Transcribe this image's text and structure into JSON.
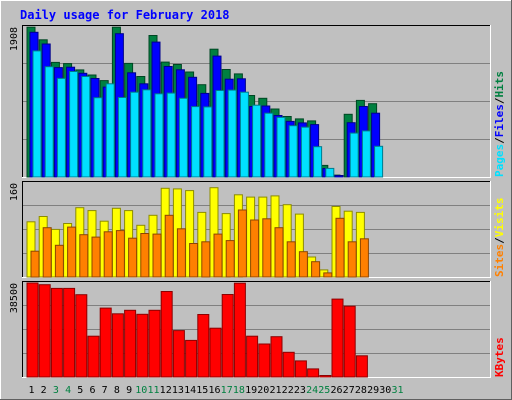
{
  "chart_data": [
    {
      "panel": "hits-files-pages",
      "type": "bar",
      "title": "Daily usage for February 2018",
      "categories": [
        "1",
        "2",
        "3",
        "4",
        "5",
        "6",
        "7",
        "8",
        "9",
        "10",
        "11",
        "12",
        "13",
        "14",
        "15",
        "16",
        "17",
        "18",
        "19",
        "20",
        "21",
        "22",
        "23",
        "24",
        "25",
        "26",
        "27",
        "28",
        "29",
        "30",
        "31"
      ],
      "y_tick": "1908",
      "ymax": 1908,
      "legend": [
        "Pages",
        "Files",
        "Hits"
      ],
      "series": [
        {
          "name": "Hits",
          "color": "#008040",
          "values": [
            1906,
            1745,
            1458,
            1443,
            1362,
            1297,
            1226,
            1906,
            1445,
            1278,
            1800,
            1462,
            1431,
            1335,
            1174,
            1625,
            1367,
            1312,
            1037,
            1001,
            865,
            770,
            739,
            714,
            148,
            24,
            798,
            974,
            933,
            0,
            0
          ]
        },
        {
          "name": "Files",
          "color": "#0000ff",
          "values": [
            1840,
            1692,
            1391,
            1397,
            1319,
            1253,
            1144,
            1823,
            1325,
            1186,
            1716,
            1405,
            1364,
            1268,
            1063,
            1538,
            1244,
            1249,
            897,
            903,
            782,
            707,
            688,
            667,
            107,
            5,
            691,
            897,
            811,
            0,
            0
          ]
        },
        {
          "name": "Pages",
          "color": "#00e0ff",
          "values": [
            1604,
            1403,
            1254,
            1342,
            1278,
            1009,
            1185,
            1011,
            1079,
            1109,
            1058,
            1067,
            1001,
            895,
            892,
            1100,
            1105,
            1079,
            913,
            812,
            758,
            652,
            634,
            385,
            109,
            0,
            559,
            586,
            390,
            0,
            0
          ]
        }
      ]
    },
    {
      "panel": "visits-sites",
      "type": "bar",
      "categories": [
        "1",
        "2",
        "3",
        "4",
        "5",
        "6",
        "7",
        "8",
        "9",
        "10",
        "11",
        "12",
        "13",
        "14",
        "15",
        "16",
        "17",
        "18",
        "19",
        "20",
        "21",
        "22",
        "23",
        "24",
        "25",
        "26",
        "27",
        "28",
        "29",
        "30",
        "31"
      ],
      "y_tick": "160",
      "ymax": 160,
      "legend": [
        "Sites",
        "Visits"
      ],
      "series": [
        {
          "name": "Visits",
          "color": "#ffff00",
          "values": [
            94,
            103,
            81,
            91,
            118,
            113,
            95,
            117,
            113,
            88,
            105,
            151,
            150,
            147,
            110,
            152,
            108,
            140,
            136,
            136,
            138,
            123,
            107,
            34,
            12,
            120,
            112,
            110,
            0,
            0,
            0
          ]
        },
        {
          "name": "Sites",
          "color": "#ff8000",
          "values": [
            44,
            84,
            54,
            85,
            72,
            68,
            77,
            79,
            66,
            74,
            73,
            105,
            82,
            57,
            60,
            73,
            62,
            114,
            97,
            99,
            84,
            60,
            43,
            26,
            7,
            100,
            60,
            65,
            0,
            0,
            0
          ]
        }
      ]
    },
    {
      "panel": "kbytes",
      "type": "bar",
      "categories": [
        "1",
        "2",
        "3",
        "4",
        "5",
        "6",
        "7",
        "8",
        "9",
        "10",
        "11",
        "12",
        "13",
        "14",
        "15",
        "16",
        "17",
        "18",
        "19",
        "20",
        "21",
        "22",
        "23",
        "24",
        "25",
        "26",
        "27",
        "28",
        "29",
        "30",
        "31"
      ],
      "y_tick": "38500",
      "ymax": 38500,
      "legend": [
        "KBytes"
      ],
      "series": [
        {
          "name": "KBytes",
          "color": "#ff0000",
          "values": [
            38500,
            37800,
            36300,
            36300,
            33700,
            16700,
            28200,
            25900,
            27300,
            25700,
            27300,
            35000,
            19000,
            15000,
            25600,
            20000,
            33800,
            38400,
            16700,
            13500,
            16500,
            10100,
            6600,
            3300,
            250,
            31900,
            29000,
            8700,
            0,
            0,
            0
          ]
        }
      ]
    }
  ],
  "axis": {
    "day_label_colors": {
      "weekday": "#000000",
      "weekend": "#008040"
    },
    "weekend_days": [
      "3",
      "4",
      "10",
      "11",
      "17",
      "18",
      "24",
      "25",
      "31"
    ]
  }
}
